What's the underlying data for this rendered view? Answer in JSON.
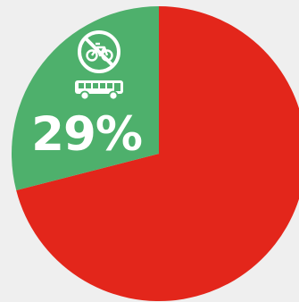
{
  "chart_data": {
    "type": "pie",
    "slices": [
      {
        "value": 29,
        "color": "#4eb06c",
        "label": "29%",
        "icons": [
          "no-bicycle-icon",
          "bus-icon"
        ]
      },
      {
        "value": 71,
        "color": "#e3261b"
      }
    ]
  },
  "colors": {
    "background": "#efefef",
    "icon": "#ffffff"
  }
}
